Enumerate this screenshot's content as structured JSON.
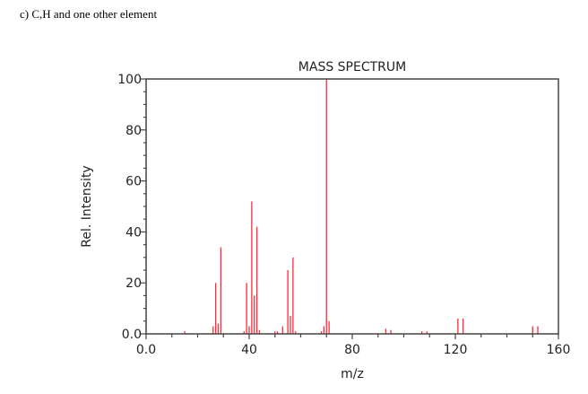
{
  "caption": "c) C,H and one other element",
  "chart_data": {
    "type": "bar",
    "title": "MASS SPECTRUM",
    "xlabel": "m/z",
    "ylabel": "Rel. Intensity",
    "xlim": [
      0,
      160
    ],
    "ylim": [
      0,
      100
    ],
    "xticks": [
      "0.0",
      "40",
      "80",
      "120",
      "160"
    ],
    "yticks": [
      "0.0",
      "20",
      "40",
      "60",
      "80",
      "100"
    ],
    "grid": false,
    "color": "#ff2a3a",
    "peaks": [
      {
        "mz": 15,
        "i": 1
      },
      {
        "mz": 26,
        "i": 3
      },
      {
        "mz": 27,
        "i": 20
      },
      {
        "mz": 28,
        "i": 4
      },
      {
        "mz": 29,
        "i": 34
      },
      {
        "mz": 38,
        "i": 1
      },
      {
        "mz": 39,
        "i": 20
      },
      {
        "mz": 40,
        "i": 3
      },
      {
        "mz": 41,
        "i": 52
      },
      {
        "mz": 42,
        "i": 15
      },
      {
        "mz": 43,
        "i": 42
      },
      {
        "mz": 44,
        "i": 1.5
      },
      {
        "mz": 50,
        "i": 1
      },
      {
        "mz": 51,
        "i": 1
      },
      {
        "mz": 53,
        "i": 3
      },
      {
        "mz": 55,
        "i": 25
      },
      {
        "mz": 56,
        "i": 7
      },
      {
        "mz": 57,
        "i": 30
      },
      {
        "mz": 58,
        "i": 1
      },
      {
        "mz": 68,
        "i": 1
      },
      {
        "mz": 69,
        "i": 3
      },
      {
        "mz": 70,
        "i": 100
      },
      {
        "mz": 71,
        "i": 5
      },
      {
        "mz": 93,
        "i": 2
      },
      {
        "mz": 95,
        "i": 1.5
      },
      {
        "mz": 107,
        "i": 1
      },
      {
        "mz": 109,
        "i": 1
      },
      {
        "mz": 121,
        "i": 6
      },
      {
        "mz": 123,
        "i": 6
      },
      {
        "mz": 150,
        "i": 3
      },
      {
        "mz": 152,
        "i": 3
      }
    ]
  }
}
